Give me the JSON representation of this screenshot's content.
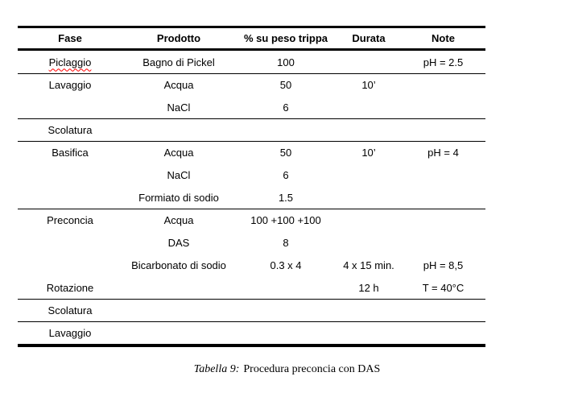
{
  "table": {
    "columns": [
      "Fase",
      "Prodotto",
      "% su peso trippa",
      "Durata",
      "Note"
    ],
    "rows": [
      {
        "fase": "Piclaggio",
        "prodotto": "Bagno di Pickel",
        "peso": "100",
        "durata": "",
        "note": "pH = 2.5"
      },
      {
        "fase": "Lavaggio",
        "prodotto": "Acqua",
        "peso": "50",
        "durata": "10’",
        "note": ""
      },
      {
        "fase": "",
        "prodotto": "NaCl",
        "peso": "6",
        "durata": "",
        "note": ""
      },
      {
        "fase": "Scolatura",
        "prodotto": "",
        "peso": "",
        "durata": "",
        "note": ""
      },
      {
        "fase": "Basifica",
        "prodotto": "Acqua",
        "peso": "50",
        "durata": "10’",
        "note": "pH = 4"
      },
      {
        "fase": "",
        "prodotto": "NaCl",
        "peso": "6",
        "durata": "",
        "note": ""
      },
      {
        "fase": "",
        "prodotto": "Formiato di sodio",
        "peso": "1.5",
        "durata": "",
        "note": ""
      },
      {
        "fase": "Preconcia",
        "prodotto": "Acqua",
        "peso": "100 +100 +100",
        "durata": "",
        "note": ""
      },
      {
        "fase": "",
        "prodotto": "DAS",
        "peso": "8",
        "durata": "",
        "note": ""
      },
      {
        "fase": "",
        "prodotto": "Bicarbonato di sodio",
        "peso": "0.3 x 4",
        "durata": "4 x 15 min.",
        "note": "pH = 8,5"
      },
      {
        "fase": "Rotazione",
        "prodotto": "",
        "peso": "",
        "durata": "12 h",
        "note": "T = 40°C"
      },
      {
        "fase": "Scolatura",
        "prodotto": "",
        "peso": "",
        "durata": "",
        "note": ""
      },
      {
        "fase": "Lavaggio",
        "prodotto": "",
        "peso": "",
        "durata": "",
        "note": ""
      }
    ]
  },
  "caption": {
    "prefix": "Tabella 9:",
    "text": "Procedura preconcia con DAS"
  },
  "colors": {
    "text": "#000000",
    "rule": "#000000",
    "spellcheck_underline": "#ff0000"
  }
}
